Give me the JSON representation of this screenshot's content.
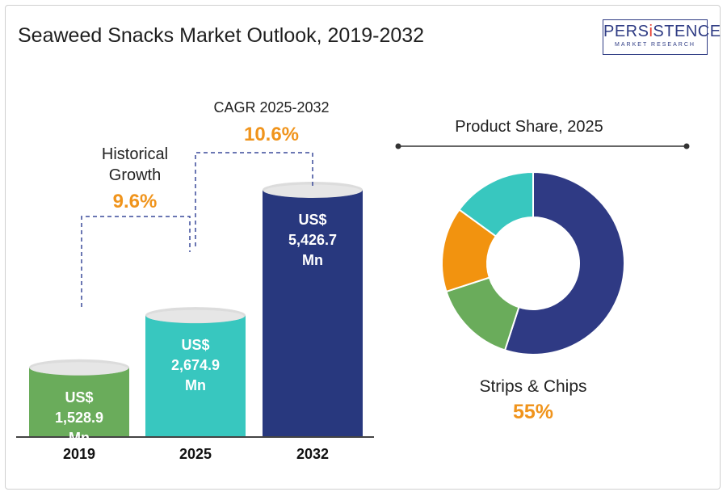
{
  "title": "Seaweed Snacks Market Outlook, 2019-2032",
  "logo": {
    "main_a": "PERS",
    "main_i": "i",
    "main_b": "STENCE",
    "sub": "MARKET RESEARCH"
  },
  "annotations": {
    "historical_label_1": "Historical",
    "historical_label_2": "Growth",
    "historical_value": "9.6%",
    "cagr_label": "CAGR 2025-2032",
    "cagr_value": "10.6%"
  },
  "chart_data": [
    {
      "type": "bar",
      "title": "Seaweed Snacks Market Outlook, 2019-2032",
      "categories": [
        "2019",
        "2025",
        "2032"
      ],
      "values": [
        1528.9,
        2674.9,
        5426.7
      ],
      "unit": "US$ Mn",
      "bar_labels": [
        [
          "US$",
          "1,528.9",
          "Mn"
        ],
        [
          "US$",
          "2,674.9",
          "Mn"
        ],
        [
          "US$",
          "5,426.7",
          "Mn"
        ]
      ],
      "colors": [
        "#6aac5b",
        "#38c7bf",
        "#28387e"
      ]
    },
    {
      "type": "pie",
      "title": "Product Share, 2025",
      "donut": true,
      "values": [
        55,
        15,
        15,
        15
      ],
      "colors": [
        "#2f3a84",
        "#6aac5b",
        "#f2930f",
        "#38c7bf"
      ],
      "highlight_label": "Strips & Chips",
      "highlight_value": "55%"
    }
  ]
}
